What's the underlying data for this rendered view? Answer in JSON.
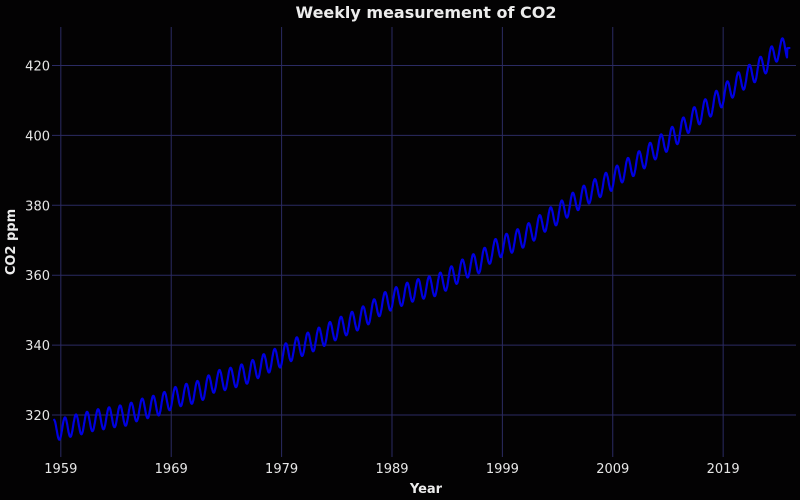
{
  "chart_data": {
    "type": "line",
    "title": "Weekly measurement of CO2",
    "xlabel": "Year",
    "ylabel": "CO2 ppm",
    "xlim": [
      1958.2,
      2025.6
    ],
    "ylim": [
      308,
      431
    ],
    "x_ticks": [
      1959,
      1969,
      1979,
      1989,
      1999,
      2009,
      2019
    ],
    "y_ticks": [
      320,
      340,
      360,
      380,
      400,
      420
    ],
    "grid": true,
    "legend": "none",
    "series": [
      {
        "color": "#0000e0",
        "x": [
          1958.4,
          1959.0,
          1960.0,
          1961.0,
          1962.0,
          1963.0,
          1964.0,
          1965.0,
          1966.0,
          1967.0,
          1968.0,
          1969.0,
          1970.0,
          1971.0,
          1972.0,
          1973.0,
          1974.0,
          1975.0,
          1976.0,
          1977.0,
          1978.0,
          1979.0,
          1980.0,
          1981.0,
          1982.0,
          1983.0,
          1984.0,
          1985.0,
          1986.0,
          1987.0,
          1988.0,
          1989.0,
          1990.0,
          1991.0,
          1992.0,
          1993.0,
          1994.0,
          1995.0,
          1996.0,
          1997.0,
          1998.0,
          1999.0,
          2000.0,
          2001.0,
          2002.0,
          2003.0,
          2004.0,
          2005.0,
          2006.0,
          2007.0,
          2008.0,
          2009.0,
          2010.0,
          2011.0,
          2012.0,
          2013.0,
          2014.0,
          2015.0,
          2016.0,
          2017.0,
          2018.0,
          2019.0,
          2020.0,
          2021.0,
          2022.0,
          2023.0,
          2024.0,
          2025.0
        ],
        "y": [
          315.7,
          316.0,
          316.9,
          317.6,
          318.5,
          319.0,
          319.6,
          320.0,
          321.4,
          322.2,
          323.0,
          324.6,
          325.7,
          326.3,
          327.5,
          329.7,
          330.2,
          331.1,
          332.1,
          333.8,
          335.4,
          336.8,
          338.7,
          340.1,
          341.4,
          343.0,
          344.6,
          346.0,
          347.4,
          349.2,
          351.6,
          353.1,
          354.4,
          355.6,
          356.4,
          357.1,
          358.8,
          360.8,
          362.6,
          363.7,
          366.7,
          368.4,
          369.6,
          371.1,
          373.2,
          375.8,
          377.5,
          379.8,
          381.9,
          383.8,
          385.6,
          387.4,
          389.9,
          391.6,
          393.9,
          396.5,
          398.6,
          400.8,
          404.2,
          406.5,
          408.7,
          411.4,
          414.2,
          416.4,
          418.5,
          421.1,
          424.6,
          425.0
        ],
        "seasonal_amplitude_ppm": 6
      }
    ]
  }
}
